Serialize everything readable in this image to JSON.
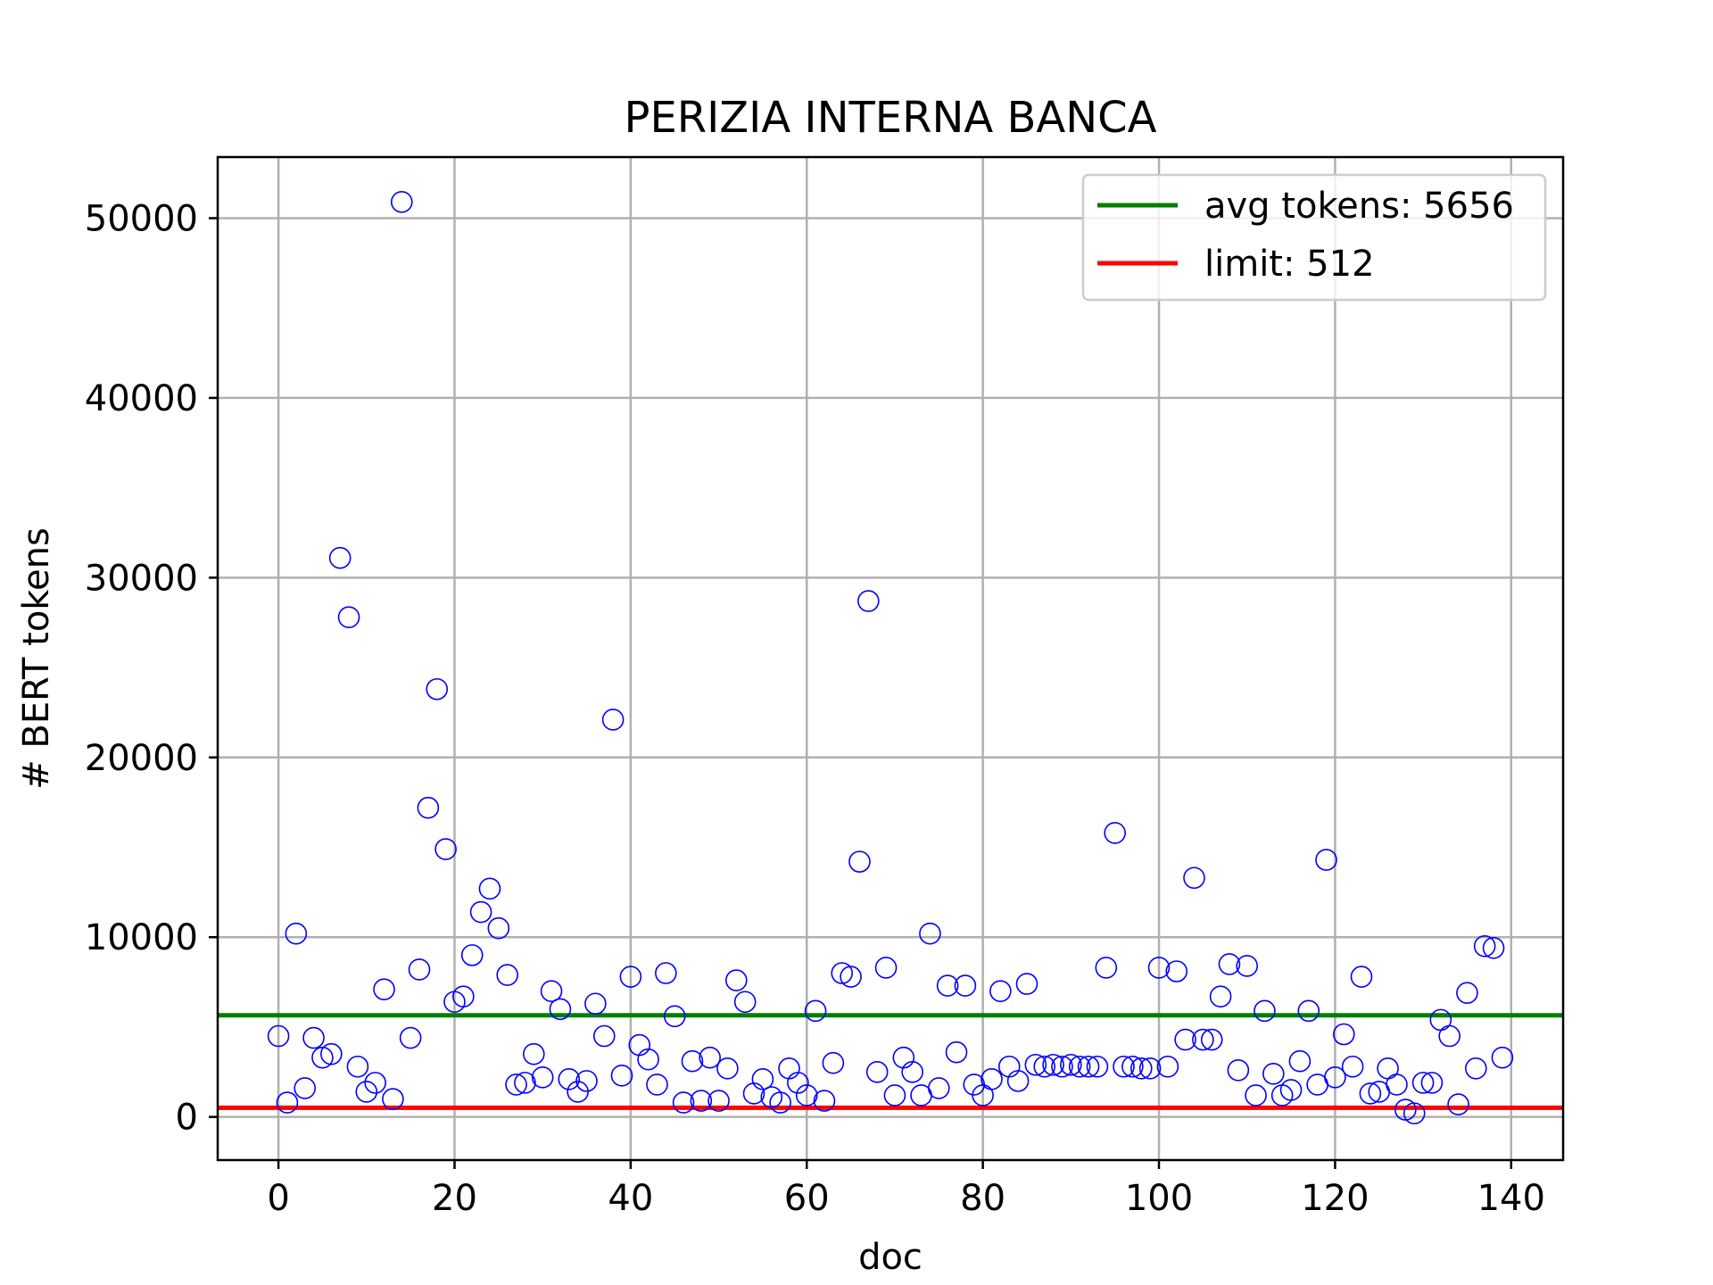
{
  "chart_data": {
    "type": "scatter",
    "title": "PERIZIA INTERNA BANCA",
    "xlabel": "doc",
    "ylabel": "# BERT tokens",
    "xlim": [
      -6.9,
      145.9
    ],
    "ylim": [
      -2400,
      53400
    ],
    "x_ticks": [
      0,
      20,
      40,
      60,
      80,
      100,
      120,
      140
    ],
    "y_ticks": [
      0,
      10000,
      20000,
      30000,
      40000,
      50000
    ],
    "grid": true,
    "legend_position": "top-right",
    "colors": {
      "points": "#0000ff",
      "avg_line": "#008000",
      "limit_line": "#ff0000"
    },
    "reference_lines": [
      {
        "label": "avg tokens: 5656",
        "y": 5656,
        "color": "#008000"
      },
      {
        "label": "limit: 512",
        "y": 512,
        "color": "#ff0000"
      }
    ],
    "series": [
      {
        "marker": "open-circle",
        "x": [
          0,
          1,
          2,
          3,
          4,
          5,
          6,
          7,
          8,
          9,
          10,
          11,
          12,
          13,
          14,
          15,
          16,
          17,
          18,
          19,
          20,
          21,
          22,
          23,
          24,
          25,
          26,
          27,
          28,
          29,
          30,
          31,
          32,
          33,
          34,
          35,
          36,
          37,
          38,
          39,
          40,
          41,
          42,
          43,
          44,
          45,
          46,
          47,
          48,
          49,
          50,
          51,
          52,
          53,
          54,
          55,
          56,
          57,
          58,
          59,
          60,
          61,
          62,
          63,
          64,
          65,
          66,
          67,
          68,
          69,
          70,
          71,
          72,
          73,
          74,
          75,
          76,
          77,
          78,
          79,
          80,
          81,
          82,
          83,
          84,
          85,
          86,
          87,
          88,
          89,
          90,
          91,
          92,
          93,
          94,
          95,
          96,
          97,
          98,
          99,
          100,
          101,
          102,
          103,
          104,
          105,
          106,
          107,
          108,
          109,
          110,
          111,
          112,
          113,
          114,
          115,
          116,
          117,
          118,
          119,
          120,
          121,
          122,
          123,
          124,
          125,
          126,
          127,
          128,
          129,
          130,
          131,
          132,
          133,
          134,
          135,
          136,
          137,
          138,
          139
        ],
        "y": [
          4500,
          800,
          10200,
          1600,
          4400,
          3300,
          3500,
          31100,
          27800,
          2800,
          1400,
          1900,
          7100,
          1000,
          50900,
          4400,
          8200,
          17200,
          23800,
          14900,
          6400,
          6700,
          9000,
          11400,
          12700,
          10500,
          7900,
          1800,
          1900,
          3500,
          2200,
          7000,
          6000,
          2100,
          1400,
          2000,
          6300,
          4500,
          22100,
          2300,
          7800,
          4000,
          3200,
          1800,
          8000,
          5600,
          800,
          3100,
          900,
          3300,
          900,
          2700,
          7600,
          6400,
          1300,
          2100,
          1100,
          800,
          2700,
          1900,
          1200,
          5900,
          900,
          3000,
          8000,
          7800,
          14200,
          28700,
          2500,
          8300,
          1200,
          3300,
          2500,
          1200,
          10200,
          1600,
          7300,
          3600,
          7300,
          1800,
          1200,
          2100,
          7000,
          2800,
          2000,
          7400,
          2900,
          2800,
          2900,
          2800,
          2900,
          2800,
          2800,
          2800,
          8300,
          15800,
          2800,
          2800,
          2700,
          2700,
          8300,
          2800,
          8100,
          4300,
          13300,
          4300,
          4300,
          6700,
          8500,
          2600,
          8400,
          1200,
          5900,
          2400,
          1200,
          1500,
          3100,
          5900,
          1800,
          14300,
          2200,
          4600,
          2800,
          7800,
          1300,
          1400,
          2700,
          1800,
          400,
          200,
          1900,
          1900,
          5400,
          4500,
          700,
          6900,
          2700,
          9500,
          9400,
          3300
        ]
      }
    ]
  }
}
